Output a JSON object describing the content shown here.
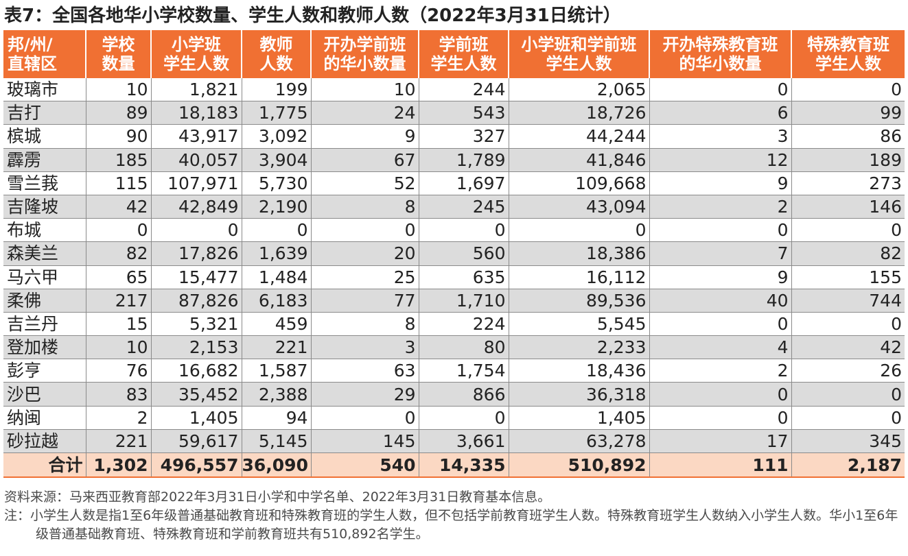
{
  "title": "表7：全国各地华小学校数量、学生人数和教师人数（2022年3月31日统计）",
  "table": {
    "headers": [
      [
        "邦/州/",
        "直辖区"
      ],
      [
        "学校",
        "数量"
      ],
      [
        "小学班",
        "学生人数"
      ],
      [
        "教师",
        "人数"
      ],
      [
        "开办学前班",
        "的华小数量"
      ],
      [
        "学前班",
        "学生人数"
      ],
      [
        "小学班和学前班",
        "学生人数"
      ],
      [
        "开办特殊教育班",
        "的华小数量"
      ],
      [
        "特殊教育班",
        "学生人数"
      ]
    ],
    "rows": [
      [
        "玻璃市",
        "10",
        "1,821",
        "199",
        "10",
        "244",
        "2,065",
        "0",
        "0"
      ],
      [
        "吉打",
        "89",
        "18,183",
        "1,775",
        "24",
        "543",
        "18,726",
        "6",
        "99"
      ],
      [
        "槟城",
        "90",
        "43,917",
        "3,092",
        "9",
        "327",
        "44,244",
        "3",
        "86"
      ],
      [
        "霹雳",
        "185",
        "40,057",
        "3,904",
        "67",
        "1,789",
        "41,846",
        "12",
        "189"
      ],
      [
        "雪兰莪",
        "115",
        "107,971",
        "5,730",
        "52",
        "1,697",
        "109,668",
        "9",
        "273"
      ],
      [
        "吉隆坡",
        "42",
        "42,849",
        "2,190",
        "8",
        "245",
        "43,094",
        "2",
        "146"
      ],
      [
        "布城",
        "0",
        "0",
        "0",
        "0",
        "0",
        "0",
        "0",
        "0"
      ],
      [
        "森美兰",
        "82",
        "17,826",
        "1,639",
        "20",
        "560",
        "18,386",
        "7",
        "82"
      ],
      [
        "马六甲",
        "65",
        "15,477",
        "1,484",
        "25",
        "635",
        "16,112",
        "9",
        "155"
      ],
      [
        "柔佛",
        "217",
        "87,826",
        "6,183",
        "77",
        "1,710",
        "89,536",
        "40",
        "744"
      ],
      [
        "吉兰丹",
        "15",
        "5,321",
        "459",
        "8",
        "224",
        "5,545",
        "0",
        "0"
      ],
      [
        "登加楼",
        "10",
        "2,153",
        "221",
        "3",
        "80",
        "2,233",
        "4",
        "42"
      ],
      [
        "彭亨",
        "76",
        "16,682",
        "1,587",
        "63",
        "1,754",
        "18,436",
        "2",
        "26"
      ],
      [
        "沙巴",
        "83",
        "35,452",
        "2,388",
        "29",
        "866",
        "36,318",
        "0",
        "0"
      ],
      [
        "纳闽",
        "2",
        "1,405",
        "94",
        "0",
        "0",
        "1,405",
        "0",
        "0"
      ],
      [
        "砂拉越",
        "221",
        "59,617",
        "5,145",
        "145",
        "3,661",
        "63,278",
        "17",
        "345"
      ]
    ],
    "total": [
      "合计",
      "1,302",
      "496,557",
      "36,090",
      "540",
      "14,335",
      "510,892",
      "111",
      "2,187"
    ]
  },
  "source_note": "资料来源：马来西亚教育部2022年3月31日小学和中学名单、2022年3月31日教育基本信息。",
  "footnote": "注：小学生人数是指1至6年级普通基础教育班和特殊教育班的学生人数，但不包括学前教育班学生人数。特殊教育班学生人数纳入小学生人数。华小1至6年级普通基础教育班、特殊教育班和学前教育班共有510,892名学生。",
  "colors": {
    "header_bg": "#f07033",
    "header_text": "#ffffff",
    "alt_row_bg": "#dcdcdc",
    "total_row_bg": "#fbd8c3"
  }
}
